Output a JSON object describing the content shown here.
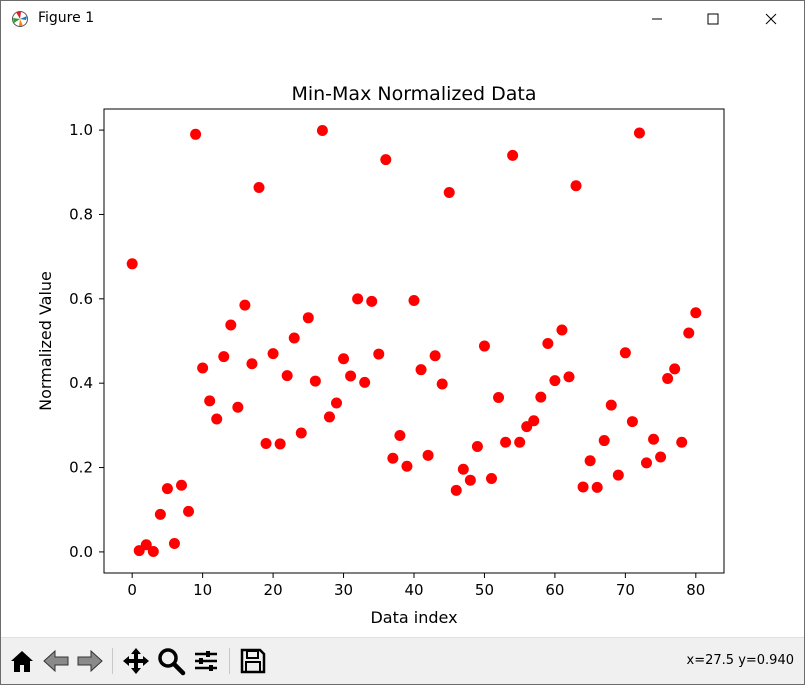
{
  "window": {
    "title": "Figure 1"
  },
  "toolbar": {
    "buttons": [
      "home-icon",
      "back-arrow-icon",
      "forward-arrow-icon",
      "pan-icon",
      "zoom-icon",
      "configure-subplots-icon",
      "save-icon"
    ],
    "coords": "x=27.5 y=0.940"
  },
  "colors": {
    "marker": "#ff0000",
    "toolbar_bg": "#f0f0f0"
  },
  "chart_data": {
    "type": "scatter",
    "title": "Min-Max Normalized Data",
    "xlabel": "Data index",
    "ylabel": "Normalized Value",
    "xlim": [
      -4,
      84
    ],
    "ylim": [
      -0.05,
      1.05
    ],
    "xticks": [
      0,
      10,
      20,
      30,
      40,
      50,
      60,
      70,
      80
    ],
    "xtick_labels": [
      "0",
      "10",
      "20",
      "30",
      "40",
      "50",
      "60",
      "70",
      "80"
    ],
    "yticks": [
      0.0,
      0.2,
      0.4,
      0.6,
      0.8,
      1.0
    ],
    "ytick_labels": [
      "0.0",
      "0.2",
      "0.4",
      "0.6",
      "0.8",
      "1.0"
    ],
    "grid": false,
    "marker": "circle",
    "color": "#ff0000",
    "x": [
      0,
      1,
      2,
      3,
      4,
      5,
      6,
      7,
      8,
      9,
      10,
      11,
      12,
      13,
      14,
      15,
      16,
      17,
      18,
      19,
      20,
      21,
      22,
      23,
      24,
      25,
      26,
      27,
      28,
      29,
      30,
      31,
      32,
      33,
      34,
      35,
      36,
      37,
      38,
      39,
      40,
      41,
      42,
      43,
      44,
      45,
      46,
      47,
      48,
      49,
      50,
      51,
      52,
      53,
      54,
      55,
      56,
      57,
      58,
      59,
      60,
      61,
      62,
      63,
      64,
      65,
      66,
      67,
      68,
      69,
      70,
      71,
      72,
      73,
      74,
      75,
      76,
      77,
      78,
      79,
      80
    ],
    "y": [
      0.683,
      0.003,
      0.017,
      0.001,
      0.089,
      0.15,
      0.02,
      0.158,
      0.096,
      0.99,
      0.436,
      0.358,
      0.315,
      0.463,
      0.538,
      0.343,
      0.585,
      0.446,
      0.864,
      0.257,
      0.47,
      0.256,
      0.418,
      0.507,
      0.282,
      0.555,
      0.405,
      0.999,
      0.32,
      0.353,
      0.458,
      0.417,
      0.6,
      0.402,
      0.594,
      0.469,
      0.93,
      0.222,
      0.276,
      0.203,
      0.596,
      0.432,
      0.229,
      0.465,
      0.398,
      0.852,
      0.146,
      0.196,
      0.17,
      0.25,
      0.488,
      0.174,
      0.366,
      0.26,
      0.94,
      0.26,
      0.297,
      0.311,
      0.367,
      0.494,
      0.406,
      0.526,
      0.415,
      0.868,
      0.154,
      0.216,
      0.153,
      0.264,
      0.348,
      0.182,
      0.472,
      0.309,
      0.993,
      0.211,
      0.267,
      0.225,
      0.411,
      0.434,
      0.26,
      0.519,
      0.567
    ]
  }
}
